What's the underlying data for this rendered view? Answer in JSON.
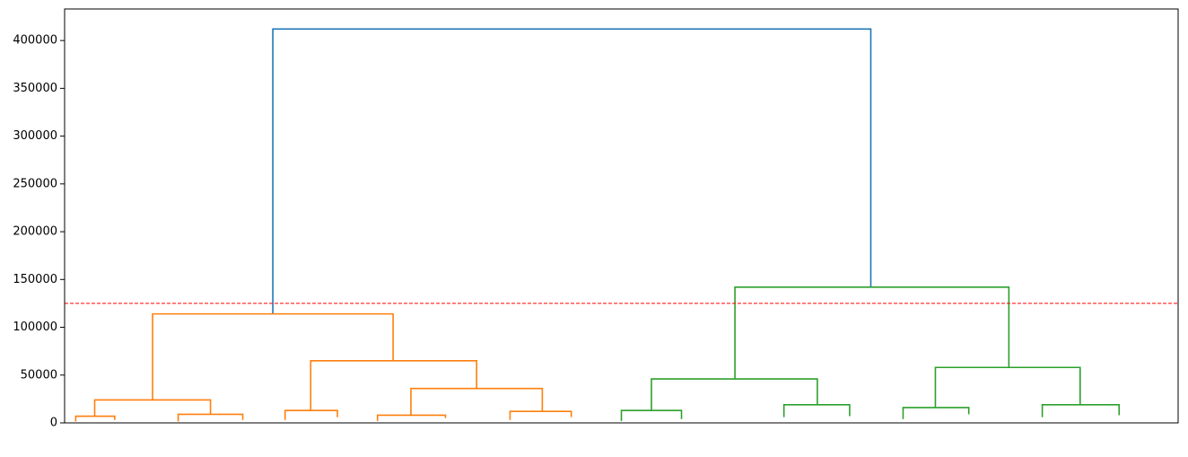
{
  "chart_data": {
    "type": "dendrogram",
    "ylim": [
      0,
      433000
    ],
    "yticks": [
      0,
      50000,
      100000,
      150000,
      200000,
      250000,
      300000,
      350000,
      400000
    ],
    "xlim": [
      0,
      100
    ],
    "threshold": 125000,
    "threshold_color": "#ff0000",
    "links": [
      {
        "x": [
          18.7,
          72.4
        ],
        "h": [
          114000,
          412000,
          142000
        ],
        "color": "#1f77b4"
      },
      {
        "x": [
          7.9,
          29.5
        ],
        "h": [
          24000,
          114000,
          65000
        ],
        "color": "#ff7f0e"
      },
      {
        "x": [
          2.7,
          13.1
        ],
        "h": [
          7000,
          24000,
          9000
        ],
        "color": "#ff7f0e"
      },
      {
        "x": [
          22.1,
          37.0
        ],
        "h": [
          13000,
          65000,
          36000
        ],
        "color": "#ff7f0e"
      },
      {
        "x": [
          31.1,
          42.9
        ],
        "h": [
          8000,
          36000,
          12000
        ],
        "color": "#ff7f0e"
      },
      {
        "x": [
          1.0,
          4.5
        ],
        "h": [
          1500,
          7000,
          3000
        ],
        "color": "#ff7f0e"
      },
      {
        "x": [
          10.2,
          16.0
        ],
        "h": [
          1500,
          9000,
          3000
        ],
        "color": "#ff7f0e"
      },
      {
        "x": [
          19.8,
          24.5
        ],
        "h": [
          3000,
          13000,
          6000
        ],
        "color": "#ff7f0e"
      },
      {
        "x": [
          28.1,
          34.2
        ],
        "h": [
          2000,
          8000,
          5000
        ],
        "color": "#ff7f0e"
      },
      {
        "x": [
          40.0,
          45.5
        ],
        "h": [
          3000,
          12000,
          6000
        ],
        "color": "#ff7f0e"
      },
      {
        "x": [
          60.2,
          84.8
        ],
        "h": [
          46000,
          142000,
          58000
        ],
        "color": "#2ca02c"
      },
      {
        "x": [
          52.7,
          67.6
        ],
        "h": [
          13000,
          46000,
          19000
        ],
        "color": "#2ca02c"
      },
      {
        "x": [
          78.2,
          91.2
        ],
        "h": [
          16000,
          58000,
          19000
        ],
        "color": "#2ca02c"
      },
      {
        "x": [
          50.0,
          55.4
        ],
        "h": [
          2000,
          13000,
          4000
        ],
        "color": "#2ca02c"
      },
      {
        "x": [
          64.6,
          70.5
        ],
        "h": [
          6000,
          19000,
          7000
        ],
        "color": "#2ca02c"
      },
      {
        "x": [
          75.3,
          81.2
        ],
        "h": [
          4000,
          16000,
          9000
        ],
        "color": "#2ca02c"
      },
      {
        "x": [
          87.8,
          94.7
        ],
        "h": [
          6000,
          19000,
          8000
        ],
        "color": "#2ca02c"
      }
    ]
  }
}
